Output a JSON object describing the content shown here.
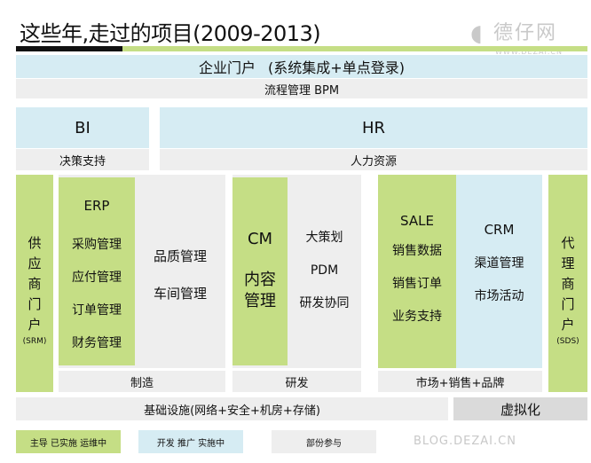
{
  "title": "这些年,走过的项目(2009-2013)",
  "watermark": {
    "logo_text": "德仔网",
    "logo_url": "WWW.DEZAI.CN",
    "blog": "BLOG.DEZAI.CN"
  },
  "portal": {
    "title": "企业门户",
    "subtitle": "(系统集成+单点登录)",
    "bpm": "流程管理 BPM"
  },
  "bi": {
    "title": "BI",
    "subtitle": "决策支持"
  },
  "hr": {
    "title": "HR",
    "subtitle": "人力资源"
  },
  "srm": {
    "chars": [
      "供",
      "应",
      "商",
      "门",
      "户"
    ],
    "abbr": "(SRM)"
  },
  "sds": {
    "chars": [
      "代",
      "理",
      "商",
      "门",
      "户"
    ],
    "abbr": "(SDS)"
  },
  "manufacturing": {
    "erp_title": "ERP",
    "erp_items": [
      "采购管理",
      "应付管理",
      "订单管理",
      "财务管理"
    ],
    "side_items": [
      "品质管理",
      "车间管理"
    ],
    "footer": "制造"
  },
  "rnd": {
    "cm_title": "CM",
    "cm_sub": [
      "内容",
      "管理"
    ],
    "side_items": [
      "大策划",
      "PDM",
      "研发协同"
    ],
    "footer": "研发"
  },
  "market": {
    "sale_title": "SALE",
    "sale_items": [
      "销售数据",
      "销售订单",
      "业务支持"
    ],
    "crm_title": "CRM",
    "crm_items": [
      "渠道管理",
      "市场活动"
    ],
    "footer": "市场+销售+品牌"
  },
  "infra": {
    "label": "基础设施(网络+安全+机房+存储)",
    "virtual": "虚拟化"
  },
  "legend": [
    {
      "label": "主导 已实施 运维中",
      "color": "#c5de85"
    },
    {
      "label": "开发 推广 实施中",
      "color": "#d6ecf3"
    },
    {
      "label": "部份参与",
      "color": "#eeeeee"
    }
  ],
  "colors": {
    "green": "#c5de85",
    "blue": "#d6ecf3",
    "gray": "#eeeeee",
    "dark_gray": "#dadada",
    "bar_black": "#111111"
  }
}
